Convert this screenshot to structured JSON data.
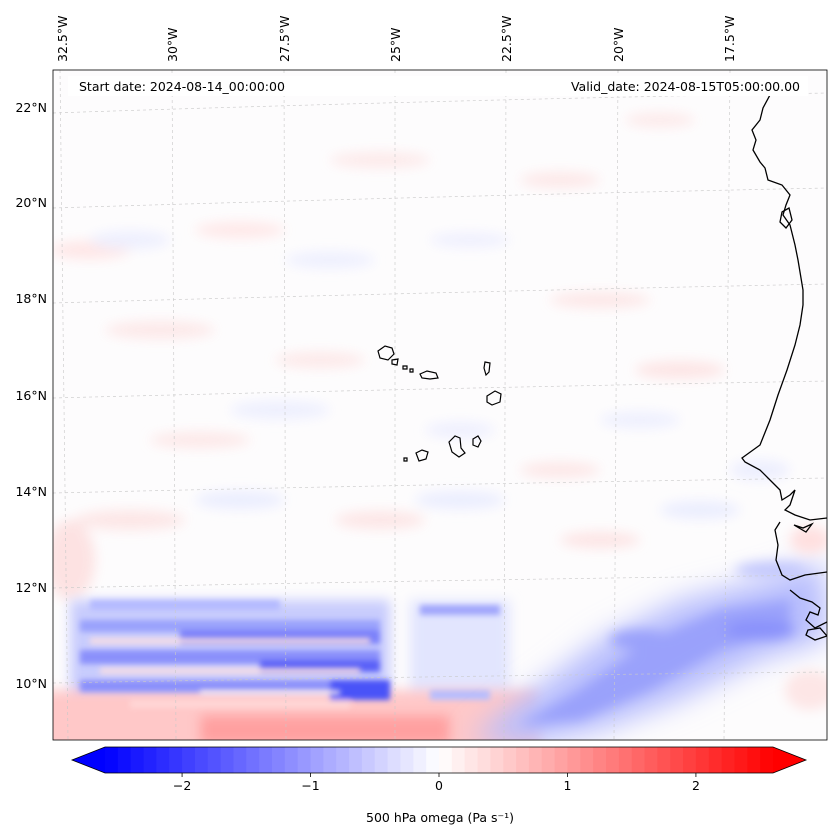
{
  "map": {
    "start_date_label": "Start date: 2024-08-14_00:00:00",
    "valid_date_label": "Valid_date: 2024-08-15T05:00:00.00",
    "lon_ticks": [
      "32.5°W",
      "30°W",
      "27.5°W",
      "25°W",
      "22.5°W",
      "20°W",
      "17.5°W"
    ],
    "lat_ticks": [
      "22°N",
      "20°N",
      "18°N",
      "16°N",
      "14°N",
      "12°N",
      "10°N"
    ],
    "gridlines": "dashed-light-gray",
    "coastline_color": "#000000",
    "field": "500 hPa omega",
    "field_description": "mostly near-zero values; strong negative (ascending, blue) bands between 9.5°N and 12°N west of 25°W and a broad blue band SW–NE from 22°W to 17°W near 10–12.5°N; weak positive (red) values near the southern edge"
  },
  "colorbar": {
    "label": "500 hPa omega (Pa s⁻¹)",
    "ticks": [
      "−2",
      "−1",
      "0",
      "1",
      "2"
    ],
    "tick_values": [
      -2,
      -1,
      0,
      1,
      2
    ],
    "range": [
      -2.6,
      2.6
    ],
    "extend": "both",
    "colormap": "bwr",
    "color_min": "#0000ff",
    "color_mid": "#ffffff",
    "color_max": "#ff0000"
  }
}
